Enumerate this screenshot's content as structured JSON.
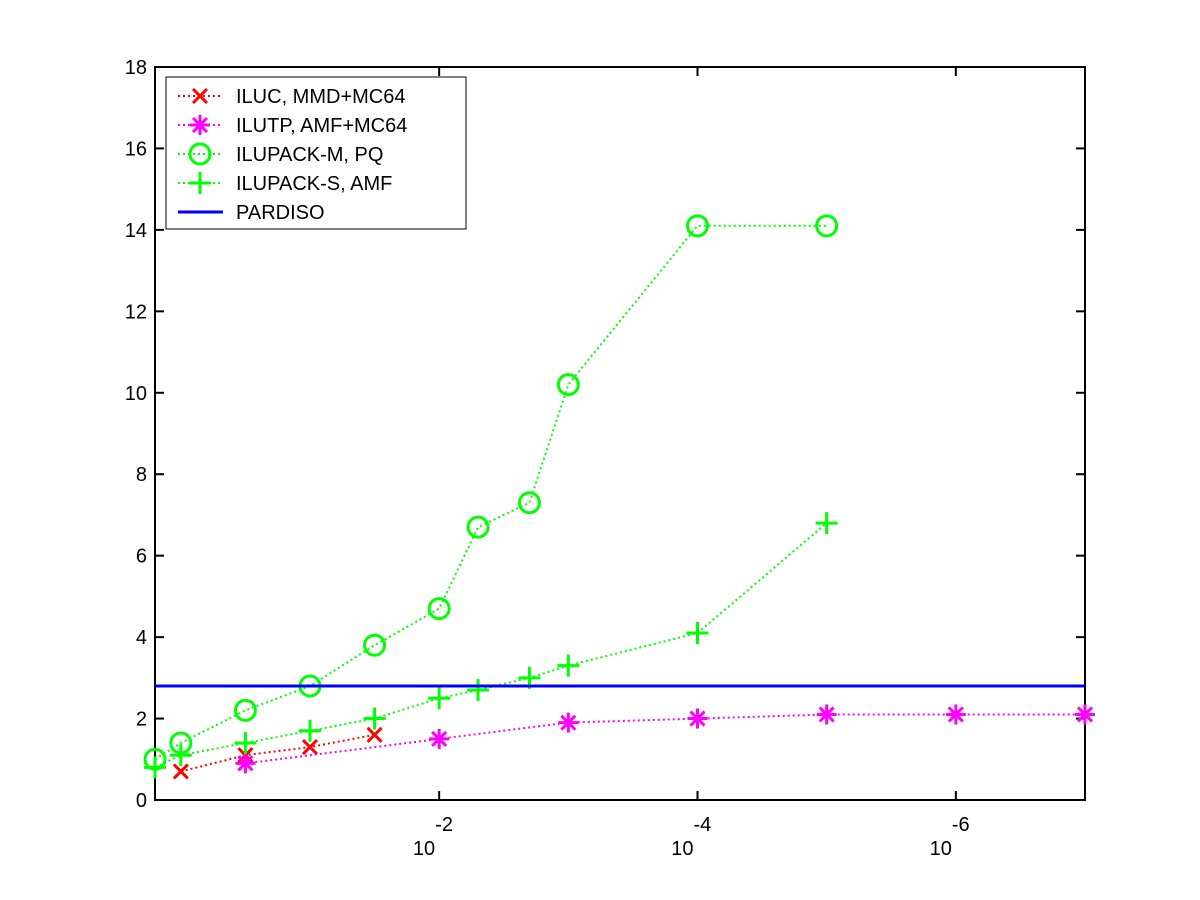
{
  "chart_data": {
    "type": "line",
    "title": "",
    "xlabel": "",
    "ylabel": "",
    "x_scale": "log-reversed",
    "xlim": [
      1.585,
      1e-07
    ],
    "ylim": [
      0,
      18
    ],
    "grid": false,
    "legend_position": "top-left",
    "y_ticks": [
      0,
      2,
      4,
      6,
      8,
      10,
      12,
      14,
      16,
      18
    ],
    "x_ticks": [
      {
        "value": 0.01,
        "base": "10",
        "exponent": "-2"
      },
      {
        "value": 0.0001,
        "base": "10",
        "exponent": "-4"
      },
      {
        "value": 1e-06,
        "base": "10",
        "exponent": "-6"
      }
    ],
    "series": [
      {
        "name": "ILUC, MMD+MC64",
        "color": "#ff0000",
        "marker": "x",
        "line_style": "dotted",
        "x": [
          1,
          0.3162,
          0.1,
          0.03162
        ],
        "y": [
          0.7,
          1.1,
          1.3,
          1.6
        ]
      },
      {
        "name": "ILUTP, AMF+MC64",
        "color": "#ff00ff",
        "marker": "asterisk",
        "line_style": "dotted",
        "x": [
          0.3162,
          0.01,
          0.001,
          0.0001,
          1e-05,
          1e-06,
          1e-07
        ],
        "y": [
          0.9,
          1.5,
          1.9,
          2.0,
          2.1,
          2.1,
          2.1
        ]
      },
      {
        "name": "ILUPACK-M, PQ",
        "color": "#00ff00",
        "marker": "circle",
        "line_style": "dotted",
        "x": [
          1.585,
          1,
          0.3162,
          0.1,
          0.03162,
          0.01,
          0.005,
          0.002,
          0.001,
          0.0001,
          1e-05
        ],
        "y": [
          1.0,
          1.4,
          2.2,
          2.8,
          3.8,
          4.7,
          6.7,
          7.3,
          10.2,
          14.1,
          14.1
        ]
      },
      {
        "name": "ILUPACK-S, AMF",
        "color": "#00ff00",
        "marker": "plus",
        "line_style": "dotted",
        "x": [
          1.585,
          1,
          0.3162,
          0.1,
          0.03162,
          0.01,
          0.005,
          0.002,
          0.001,
          0.0001,
          1e-05
        ],
        "y": [
          0.8,
          1.1,
          1.4,
          1.7,
          2.0,
          2.5,
          2.7,
          3.0,
          3.3,
          4.1,
          6.8
        ]
      },
      {
        "name": "PARDISO",
        "color": "#0000ff",
        "marker": "none",
        "line_style": "solid",
        "x": [
          1.585,
          1e-07
        ],
        "y": [
          2.8,
          2.8
        ]
      }
    ]
  }
}
